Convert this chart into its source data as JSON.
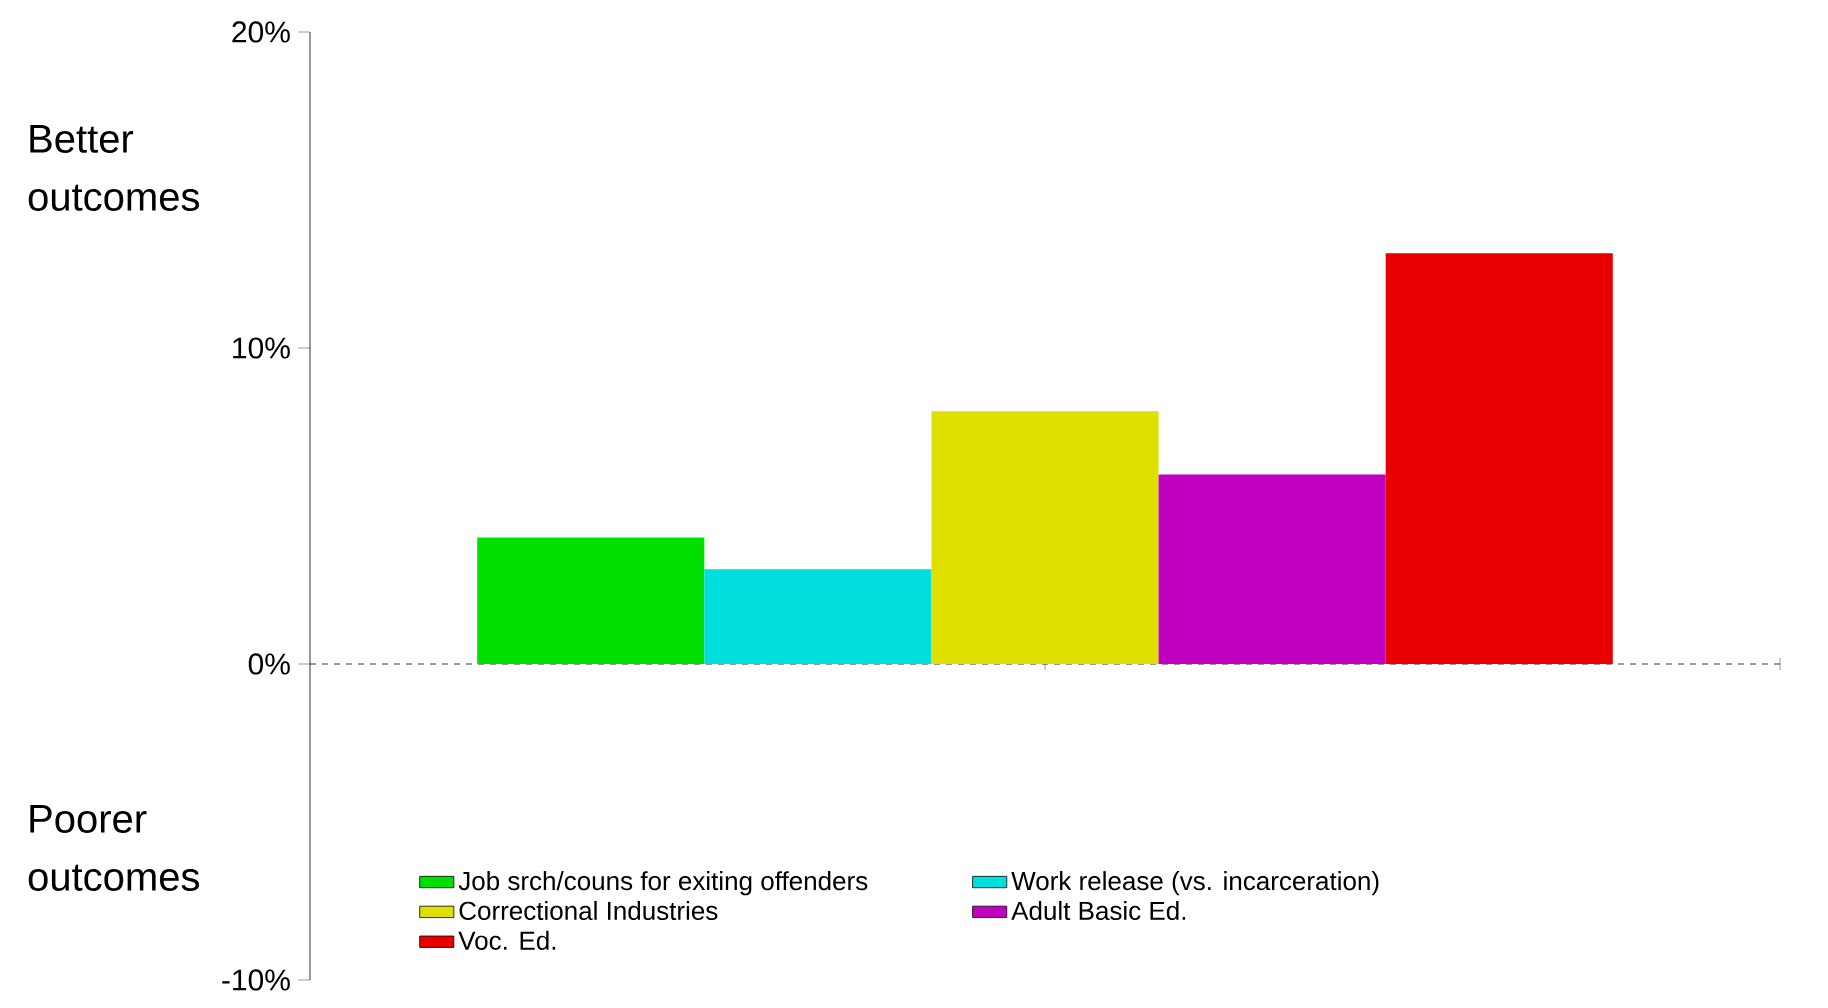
{
  "chart_data": {
    "type": "bar",
    "categories": [
      null
    ],
    "series": [
      {
        "name": "Job srch/couns for exiting offenders",
        "color": "#00e000",
        "values": [
          4
        ]
      },
      {
        "name": "Work release (vs. incarceration)",
        "color": "#00dede",
        "values": [
          3
        ]
      },
      {
        "name": "Correctional Industries",
        "color": "#e0e000",
        "values": [
          8
        ]
      },
      {
        "name": "Adult Basic Ed.",
        "color": "#c000c0",
        "values": [
          6
        ]
      },
      {
        "name": "Voc. Ed.",
        "color": "#e80000",
        "values": [
          13
        ]
      }
    ],
    "ylim": [
      -10,
      20
    ],
    "yticks": [
      {
        "value": -10,
        "label": "-10%"
      },
      {
        "value": 0,
        "label": "0%"
      },
      {
        "value": 10,
        "label": "10%"
      },
      {
        "value": 20,
        "label": "20%"
      }
    ],
    "annotations": [
      "Better outcomes",
      "Poorer outcomes"
    ],
    "legend": "bottom"
  }
}
